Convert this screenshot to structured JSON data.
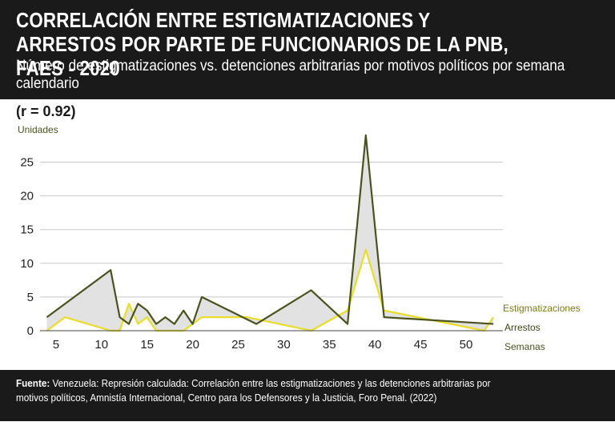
{
  "header": {
    "title": "CORRELACIÓN ENTRE ESTIGMATIZACIONES Y ARRESTOS POR PARTE DE FUNCIONARIOS DE LA PNB, FAES - 2020",
    "subtitle": "Número de estigmatizaciones vs. detenciones arbitrarias por motivos políticos por semana calendario"
  },
  "correlation": "(r = 0.92)",
  "chart_data": {
    "type": "area",
    "ylabel": "Unidades",
    "xlabel": "Semanas",
    "xlim": [
      3,
      54
    ],
    "ylim": [
      0,
      29
    ],
    "xticks": [
      5,
      10,
      15,
      20,
      25,
      30,
      35,
      40,
      45,
      50
    ],
    "yticks": [
      0,
      5,
      10,
      15,
      20,
      25
    ],
    "grid": "horizontal",
    "series": [
      {
        "name": "Arrestos",
        "color": "#4a5220",
        "x": [
          4,
          11,
          12,
          13,
          14,
          15,
          16,
          17,
          18,
          19,
          20,
          21,
          27,
          33,
          37,
          39,
          41,
          53
        ],
        "y": [
          2,
          9,
          2,
          1,
          4,
          3,
          1,
          2,
          1,
          3,
          1,
          5,
          1,
          6,
          1,
          29,
          2,
          1
        ]
      },
      {
        "name": "Estigmatizaciones",
        "color": "#e8dd2a",
        "x": [
          4,
          6,
          11,
          12,
          13,
          14,
          15,
          16,
          19,
          20,
          21,
          26,
          33,
          37,
          39,
          41,
          52,
          53
        ],
        "y": [
          0,
          2,
          0,
          0,
          4,
          1,
          2,
          0,
          0,
          1,
          2,
          2,
          0,
          3,
          12,
          3,
          0,
          2
        ]
      }
    ],
    "legend": "right"
  },
  "footer": {
    "label": "Fuente:",
    "text": "Venezuela: Represión calculada: Correlación entre las estigmatizaciones y las detenciones arbitrarias por motivos políticos, Amnistía Internacional, Centro para los Defensores y la Justicia, Foro Penal. (2022)"
  }
}
